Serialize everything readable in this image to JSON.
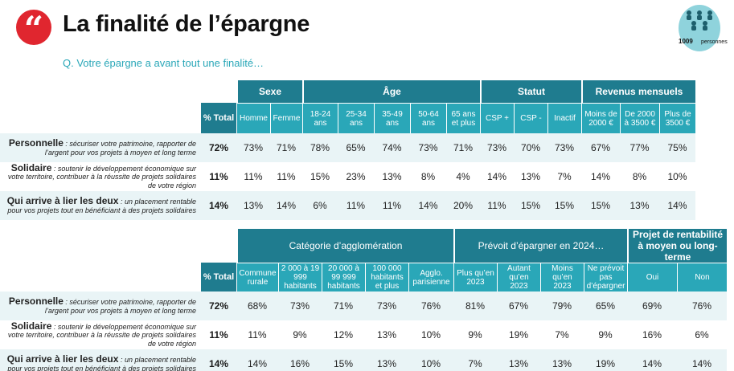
{
  "header": {
    "quote_glyph": "“",
    "title": "La finalité de l’épargne",
    "question": "Q. Votre épargne a avant tout une finalité…",
    "sample_count": "1009",
    "sample_label": "personnes"
  },
  "rows": [
    {
      "label": "Personnelle",
      "desc": " : sécuriser votre patrimoine, rapporter de l’argent pour vos projets à moyen et long terme"
    },
    {
      "label": "Solidaire",
      "desc": " : soutenir le développement économique sur votre territoire, contribuer à la réussite de projets solidaires de votre région"
    },
    {
      "label": "Qui arrive à lier les deux",
      "desc": " : un placement rentable pour vos projets tout en bénéficiant à des projets solidaires"
    }
  ],
  "table1": {
    "total_header": "% Total",
    "groups": [
      "Sexe",
      "Âge",
      "Statut",
      "Revenus mensuels"
    ],
    "subheaders": [
      "Homme",
      "Femme",
      "18-24 ans",
      "25-34 ans",
      "35-49 ans",
      "50-64 ans",
      "65 ans et plus",
      "CSP +",
      "CSP -",
      "Inactif",
      "Moins de 2000 €",
      "De 2000 à 3500 €",
      "Plus de 3500 €"
    ],
    "data": [
      {
        "total": "72%",
        "values": [
          "73%",
          "71%",
          "78%",
          "65%",
          "74%",
          "73%",
          "71%",
          "73%",
          "70%",
          "73%",
          "67%",
          "77%",
          "75%"
        ]
      },
      {
        "total": "11%",
        "values": [
          "11%",
          "11%",
          "15%",
          "23%",
          "13%",
          "8%",
          "4%",
          "14%",
          "13%",
          "7%",
          "14%",
          "8%",
          "10%"
        ]
      },
      {
        "total": "14%",
        "values": [
          "13%",
          "14%",
          "6%",
          "11%",
          "11%",
          "14%",
          "20%",
          "11%",
          "15%",
          "15%",
          "15%",
          "13%",
          "14%"
        ]
      }
    ]
  },
  "table2": {
    "total_header": "% Total",
    "groups": [
      "Catégorie d’agglomération",
      "Prévoit d’épargner en 2024…",
      "Projet de rentabilité à moyen ou long-terme"
    ],
    "subheaders": [
      "Commune rurale",
      "2 000 à 19 999 habitants",
      "20 000 à 99 999 habitants",
      "100 000 habitants et plus",
      "Agglo. parisienne",
      "Plus qu’en 2023",
      "Autant qu’en 2023",
      "Moins qu’en 2023",
      "Ne prévoit pas d’épargner",
      "Oui",
      "Non"
    ],
    "data": [
      {
        "total": "72%",
        "values": [
          "68%",
          "73%",
          "71%",
          "73%",
          "76%",
          "81%",
          "67%",
          "79%",
          "65%",
          "69%",
          "76%"
        ]
      },
      {
        "total": "11%",
        "values": [
          "11%",
          "9%",
          "12%",
          "13%",
          "10%",
          "9%",
          "19%",
          "7%",
          "9%",
          "16%",
          "6%"
        ]
      },
      {
        "total": "14%",
        "values": [
          "14%",
          "16%",
          "15%",
          "13%",
          "10%",
          "7%",
          "13%",
          "13%",
          "19%",
          "14%",
          "14%"
        ]
      }
    ]
  },
  "colors": {
    "dark_teal": "#1f7c8f",
    "teal": "#2aa7b8",
    "red": "#e0262f",
    "row_tint": "#e9f4f6"
  },
  "icons": [
    "quote-icon",
    "people-group-icon"
  ]
}
